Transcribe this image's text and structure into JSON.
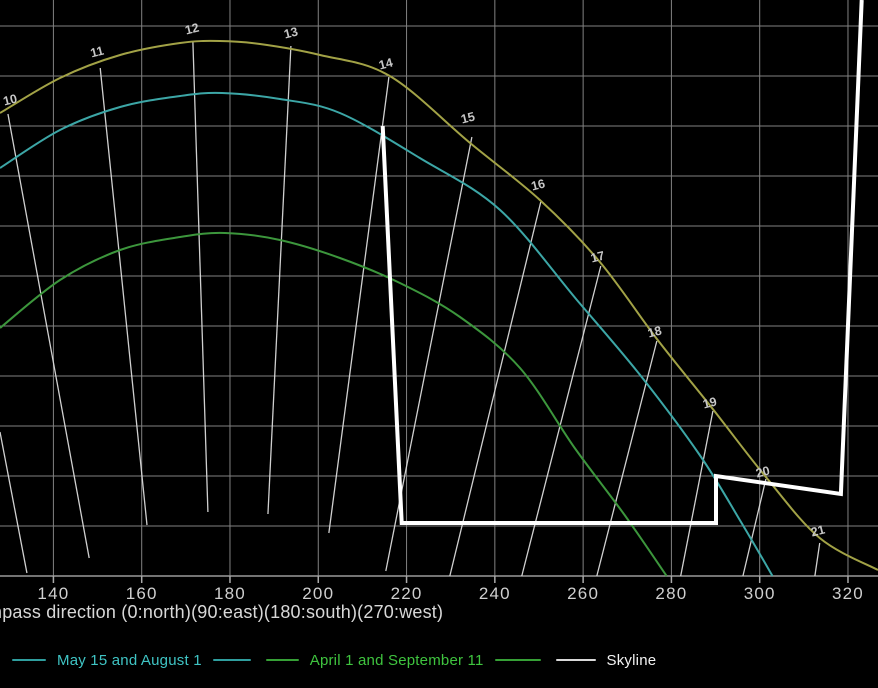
{
  "chart_data": {
    "type": "line",
    "title": "",
    "xlabel": "mpass direction (0:north)(90:east)(180:south)(270:west)",
    "x_axis": {
      "min": 127.9,
      "max": 326.8,
      "ticks": [
        140,
        160,
        180,
        200,
        220,
        240,
        260,
        280,
        300,
        320
      ]
    },
    "y_axis": {
      "min": 0,
      "max": 57.6,
      "grid_step": 5,
      "unit": "degrees elevation",
      "tick_labels_visible": false
    },
    "grid": true,
    "legend_position": "bottom",
    "series": [
      {
        "name": "",
        "in_legend": false,
        "color": "#a2a246",
        "width": 2,
        "smooth": true,
        "points": [
          [
            127.9,
            46.3
          ],
          [
            141.5,
            49.8
          ],
          [
            155.1,
            52.1
          ],
          [
            168.7,
            53.3
          ],
          [
            177.7,
            53.5
          ],
          [
            186.8,
            53.2
          ],
          [
            200.4,
            52.1
          ],
          [
            216.2,
            50.0
          ],
          [
            234.4,
            43.3
          ],
          [
            250.2,
            37.6
          ],
          [
            263.8,
            31.4
          ],
          [
            276.9,
            23.6
          ],
          [
            289.2,
            16.8
          ],
          [
            301.4,
            9.9
          ],
          [
            313.6,
            3.8
          ],
          [
            326.8,
            0.6
          ]
        ]
      },
      {
        "name": "May 15 and August 1",
        "in_legend": true,
        "color": "#3ca6a6",
        "width": 2,
        "smooth": true,
        "points": [
          [
            127.9,
            40.8
          ],
          [
            141.5,
            44.6
          ],
          [
            155.1,
            46.9
          ],
          [
            168.7,
            48.0
          ],
          [
            178.2,
            48.3
          ],
          [
            191.3,
            47.7
          ],
          [
            204.9,
            46.3
          ],
          [
            223.0,
            41.8
          ],
          [
            241.2,
            36.6
          ],
          [
            258.6,
            27.6
          ],
          [
            272.9,
            20.1
          ],
          [
            286.4,
            12.1
          ],
          [
            295.5,
            5.6
          ],
          [
            302.9,
            0.0
          ]
        ]
      },
      {
        "name": "April 1 and September 11",
        "in_legend": true,
        "color": "#3c963c",
        "width": 2,
        "smooth": true,
        "points": [
          [
            127.9,
            24.8
          ],
          [
            141.5,
            29.6
          ],
          [
            155.1,
            32.6
          ],
          [
            168.7,
            33.9
          ],
          [
            178.9,
            34.3
          ],
          [
            191.3,
            33.6
          ],
          [
            204.9,
            31.8
          ],
          [
            218.5,
            29.3
          ],
          [
            232.1,
            25.9
          ],
          [
            245.7,
            20.8
          ],
          [
            258.1,
            12.8
          ],
          [
            269.4,
            6.1
          ],
          [
            278.9,
            0.0
          ]
        ]
      },
      {
        "name": "Skyline",
        "in_legend": true,
        "color": "#ffffff",
        "width": 4,
        "smooth": false,
        "points": [
          [
            214.6,
            45.0
          ],
          [
            218.9,
            5.3
          ],
          [
            290.1,
            5.3
          ],
          [
            290.1,
            10.0
          ],
          [
            318.4,
            8.2
          ],
          [
            323.1,
            57.6
          ]
        ]
      }
    ],
    "hour_lines": [
      {
        "label": "",
        "from": [
          127.9,
          14.4
        ],
        "to": [
          134.0,
          0.3
        ],
        "label_at": null
      },
      {
        "label": "10",
        "from": [
          129.7,
          46.2
        ],
        "to": [
          148.1,
          1.8
        ],
        "label_at": [
          130.2,
          47.6
        ]
      },
      {
        "label": "11",
        "from": [
          150.6,
          50.8
        ],
        "to": [
          161.2,
          5.1
        ],
        "label_at": [
          149.9,
          52.4
        ]
      },
      {
        "label": "12",
        "from": [
          171.6,
          53.4
        ],
        "to": [
          175.0,
          6.4
        ],
        "label_at": [
          171.4,
          54.7
        ]
      },
      {
        "label": "13",
        "from": [
          193.8,
          53.0
        ],
        "to": [
          188.6,
          6.2
        ],
        "label_at": [
          193.8,
          54.3
        ]
      },
      {
        "label": "14",
        "from": [
          216.0,
          49.9
        ],
        "to": [
          202.4,
          4.3
        ],
        "label_at": [
          215.3,
          51.2
        ]
      },
      {
        "label": "15",
        "from": [
          234.8,
          43.9
        ],
        "to": [
          215.3,
          0.5
        ],
        "label_at": [
          233.9,
          45.8
        ]
      },
      {
        "label": "16",
        "from": [
          250.4,
          37.4
        ],
        "to": [
          229.8,
          0.0
        ],
        "label_at": [
          249.8,
          39.1
        ]
      },
      {
        "label": "17",
        "from": [
          264.0,
          31.0
        ],
        "to": [
          246.1,
          0.0
        ],
        "label_at": [
          263.3,
          31.9
        ]
      },
      {
        "label": "18",
        "from": [
          276.7,
          23.5
        ],
        "to": [
          263.1,
          0.0
        ],
        "label_at": [
          276.2,
          24.4
        ]
      },
      {
        "label": "19",
        "from": [
          289.4,
          16.5
        ],
        "to": [
          282.1,
          0.0
        ],
        "label_at": [
          288.7,
          17.3
        ]
      },
      {
        "label": "20",
        "from": [
          301.4,
          9.7
        ],
        "to": [
          296.2,
          0.0
        ],
        "label_at": [
          300.7,
          10.4
        ]
      },
      {
        "label": "21",
        "from": [
          313.6,
          3.3
        ],
        "to": [
          312.5,
          0.0
        ],
        "label_at": [
          313.2,
          4.5
        ]
      }
    ]
  },
  "legend": {
    "items": [
      {
        "label": "May 15 and August 1",
        "text_color": "#3fc4c4",
        "line_color": "#2f9e9e",
        "lead_dash": 34,
        "trail_dash": 38
      },
      {
        "label": "April 1 and September 11",
        "text_color": "#3fc43f",
        "line_color": "#36a036",
        "lead_dash": 33,
        "trail_dash": 46
      },
      {
        "label": "Skyline",
        "text_color": "#f2f2f2",
        "line_color": "#d9d9d9",
        "lead_dash": 40,
        "trail_dash": 0
      }
    ]
  },
  "colors": {
    "background": "#000000",
    "gridline": "#828282",
    "axis_line": "#9a9a9a",
    "tick_mark": "#aaaaaa",
    "tick_label": "#cfcfcf",
    "hour_line": "#dcdcdc",
    "hour_label": "#c6c6c6"
  }
}
